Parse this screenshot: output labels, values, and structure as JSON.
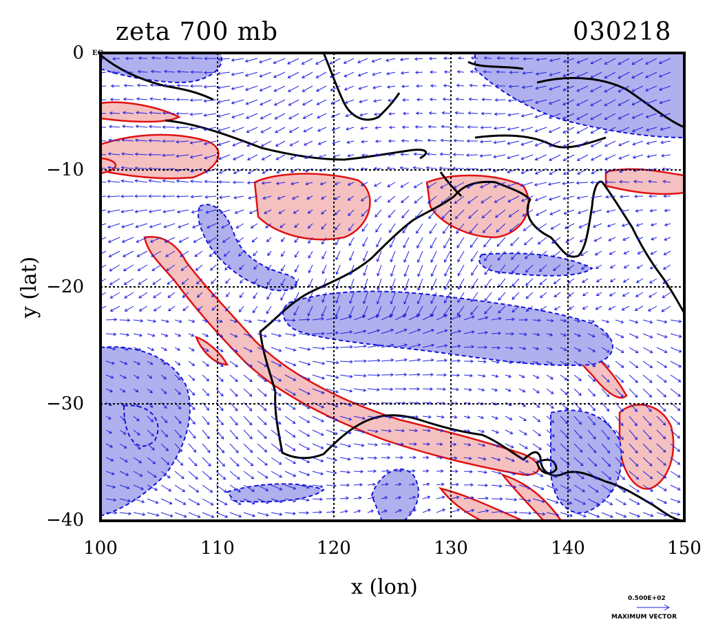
{
  "title": {
    "field": "zeta 700 mb",
    "date": "030218"
  },
  "axes": {
    "xlabel": "x (lon)",
    "ylabel": "y (lat)",
    "x_ticks": [
      "100",
      "110",
      "120",
      "130",
      "140",
      "150"
    ],
    "y_ticks": [
      "0",
      "−10",
      "−20",
      "−30",
      "−40"
    ],
    "xlim": [
      100,
      150
    ],
    "ylim": [
      -40,
      0
    ],
    "equator_label": "EQ"
  },
  "legend": {
    "max_vector_value": "0.500E+02",
    "max_vector_label": "MAXIMUM VECTOR"
  },
  "colors": {
    "positive_fill": "#f5c0c0",
    "positive_contour": "#e01010",
    "negative_fill": "#b0b0ee",
    "negative_contour": "#1010dd",
    "vector": "#2020e0",
    "coastline": "#000000",
    "grid": "#000000"
  }
}
